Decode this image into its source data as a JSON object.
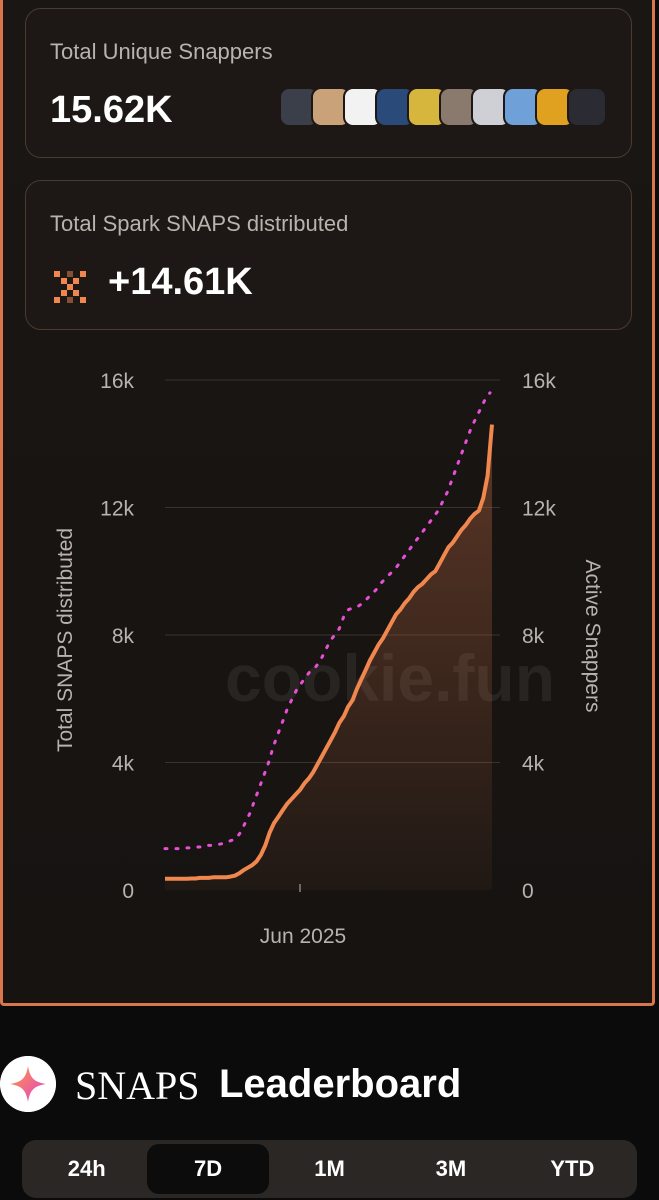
{
  "stats": {
    "snappers_label": "Total Unique Snappers",
    "snappers_value": "15.62K",
    "snaps_label": "Total Spark SNAPS distributed",
    "snaps_value": "+14.61K"
  },
  "avatar_colors": [
    "#3b3f4a",
    "#c9a27a",
    "#f2f2f2",
    "#2a4a7a",
    "#d6b63c",
    "#8a7a6e",
    "#cfcfd6",
    "#6fa0d8",
    "#e0a020",
    "#2b2b33"
  ],
  "chart": {
    "watermark": "cookie.fun",
    "left_axis_title": "Total SNAPS distributed",
    "right_axis_title": "Active Snappers",
    "y_ticks": [
      "16k",
      "12k",
      "8k",
      "4k",
      "0"
    ],
    "x_label": "Jun 2025"
  },
  "chart_data": {
    "type": "line",
    "x_label": "Jun 2025",
    "ylim": [
      0,
      16000
    ],
    "y2lim": [
      0,
      16000
    ],
    "grid": true,
    "series": [
      {
        "name": "Total SNAPS distributed",
        "style": "solid-area",
        "color": "#f0874f",
        "values": [
          350,
          350,
          350,
          350,
          350,
          350,
          360,
          360,
          380,
          380,
          380,
          400,
          400,
          400,
          400,
          420,
          450,
          520,
          620,
          700,
          780,
          900,
          1100,
          1400,
          1800,
          2100,
          2300,
          2500,
          2700,
          2850,
          3000,
          3150,
          3350,
          3500,
          3700,
          3950,
          4200,
          4450,
          4700,
          4950,
          5250,
          5450,
          5750,
          5950,
          6300,
          6600,
          6900,
          7200,
          7450,
          7700,
          7900,
          8150,
          8400,
          8650,
          8800,
          9000,
          9150,
          9350,
          9500,
          9600,
          9750,
          9900,
          10000,
          10250,
          10500,
          10750,
          10900,
          11100,
          11300,
          11450,
          11650,
          11800,
          11900,
          12300,
          13000,
          14600
        ]
      },
      {
        "name": "Active Snappers",
        "style": "dotted",
        "color": "#e64fd6",
        "values": [
          1300,
          1300,
          1300,
          1300,
          1320,
          1320,
          1340,
          1350,
          1350,
          1400,
          1400,
          1420,
          1450,
          1500,
          1550,
          1600,
          1800,
          2100,
          2400,
          2800,
          3200,
          3600,
          4000,
          4500,
          4900,
          5300,
          5700,
          6000,
          6300,
          6500,
          6700,
          6900,
          7000,
          7200,
          7500,
          7800,
          8000,
          8200,
          8600,
          8800,
          8850,
          8900,
          9000,
          9150,
          9300,
          9450,
          9650,
          9800,
          9950,
          10100,
          10300,
          10500,
          10700,
          10900,
          11100,
          11300,
          11500,
          11700,
          11900,
          12200,
          12500,
          12900,
          13300,
          13700,
          14100,
          14500,
          14800,
          15100,
          15400,
          15600
        ]
      }
    ]
  },
  "leaderboard": {
    "title_part1": "SNAPS",
    "title_part2": "Leaderboard",
    "tabs": [
      "24h",
      "7D",
      "1M",
      "3M",
      "YTD"
    ],
    "active_tab": "7D"
  }
}
